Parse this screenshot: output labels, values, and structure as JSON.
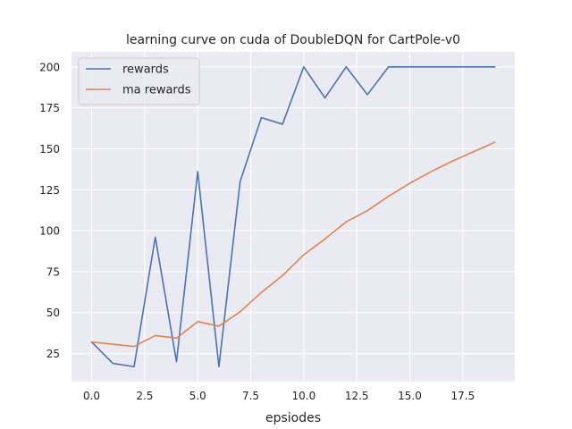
{
  "chart_data": {
    "type": "line",
    "title": "learning curve on cuda of DoubleDQN for CartPole-v0",
    "xlabel": "epsiodes",
    "ylabel": "",
    "x": [
      0,
      1,
      2,
      3,
      4,
      5,
      6,
      7,
      8,
      9,
      10,
      11,
      12,
      13,
      14,
      15,
      16,
      17,
      18,
      19
    ],
    "series": [
      {
        "name": "rewards",
        "color": "#4c72b0",
        "values": [
          32,
          19,
          17,
          96,
          20,
          136,
          17,
          130,
          169,
          165,
          200,
          181,
          200,
          183,
          200,
          200,
          200,
          200,
          200,
          200
        ]
      },
      {
        "name": "ma rewards",
        "color": "#dd8452",
        "values": [
          32,
          30.7,
          29.3,
          36,
          34.4,
          44.5,
          41.7,
          50.5,
          62.3,
          72.6,
          85.3,
          94.9,
          105.4,
          112.2,
          121,
          128.9,
          136,
          142.4,
          148.2,
          153.9
        ]
      }
    ],
    "xlim": [
      -0.95,
      19.95
    ],
    "ylim": [
      7.85,
      209.15
    ],
    "xticks": [
      0,
      2.5,
      5,
      7.5,
      10,
      12.5,
      15,
      17.5
    ],
    "xtick_labels": [
      "0.0",
      "2.5",
      "5.0",
      "7.5",
      "10.0",
      "12.5",
      "15.0",
      "17.5"
    ],
    "yticks": [
      25,
      50,
      75,
      100,
      125,
      150,
      175,
      200
    ],
    "ytick_labels": [
      "25",
      "50",
      "75",
      "100",
      "125",
      "150",
      "175",
      "200"
    ],
    "grid": true,
    "legend_position": "top-left",
    "background_color": "#eaeaf2",
    "grid_color": "#ffffff"
  }
}
